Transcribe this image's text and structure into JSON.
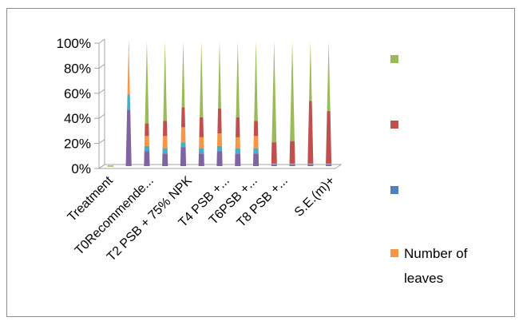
{
  "chart_data": {
    "type": "bar",
    "stacked": "percent",
    "style": "3d-cone",
    "title": "",
    "xlabel": "",
    "ylabel": "",
    "ylim": [
      0,
      100
    ],
    "y_ticks": [
      "0%",
      "20%",
      "40%",
      "60%",
      "80%",
      "100%"
    ],
    "grid": false,
    "legend_position": "right",
    "categories": [
      "Treatment",
      "",
      "T0Recommende...",
      "",
      "T2 PSB + 75% NPK",
      "",
      "T4 PSB +...",
      "",
      "T6PSB +...",
      "",
      "T8 PSB +...",
      "",
      "S.E.(m)+"
    ],
    "category_labels_shown": [
      "Treatment",
      "T0Recommende...",
      "T2 PSB + 75% NPK",
      "T4 PSB +...",
      "T6PSB +...",
      "T8 PSB +...",
      "S.E.(m)+"
    ],
    "series": [
      {
        "name": "",
        "color": "#8064A2",
        "values": [
          0,
          45,
          12,
          10,
          15,
          10,
          12,
          10,
          10,
          1,
          1,
          1,
          1
        ]
      },
      {
        "name": "",
        "color": "#4BACC6",
        "values": [
          0,
          12,
          4,
          4,
          4,
          4,
          4,
          4,
          4,
          0.5,
          0.5,
          0.5,
          0.5
        ]
      },
      {
        "name": "Number of leaves",
        "color": "#F79646",
        "values": [
          0,
          35,
          8,
          10,
          12,
          9,
          10,
          9,
          10,
          0.5,
          0.5,
          0.5,
          0.5
        ]
      },
      {
        "name": "",
        "color": "#C0504D",
        "values": [
          0,
          8,
          10,
          12,
          16,
          16,
          20,
          16,
          12,
          17,
          18,
          50,
          42
        ]
      },
      {
        "name": "",
        "color": "#9BBB59",
        "values": [
          0,
          0,
          66,
          64,
          53,
          61,
          54,
          61,
          64,
          81,
          80,
          48,
          56
        ]
      }
    ]
  },
  "legend": {
    "items": [
      {
        "label": "",
        "color": "#9BBB59"
      },
      {
        "label": "",
        "color": "#C0504D"
      },
      {
        "label": "",
        "color": "#4F81BD"
      },
      {
        "label": "Number of",
        "label2": "leaves",
        "color": "#F79646"
      }
    ]
  }
}
